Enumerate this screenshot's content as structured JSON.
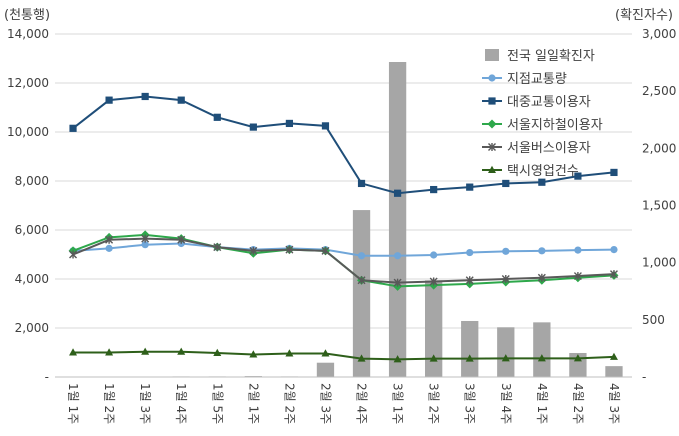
{
  "chart_data": {
    "type": "bar",
    "left_axis_label": "(천통행)",
    "right_axis_label": "(확진자수)",
    "left_ylim": [
      0,
      14000
    ],
    "left_ticks": [
      0,
      2000,
      4000,
      6000,
      8000,
      10000,
      12000,
      14000
    ],
    "left_tick_labels": [
      "-",
      "2,000",
      "4,000",
      "6,000",
      "8,000",
      "10,000",
      "12,000",
      "14,000"
    ],
    "right_ylim": [
      0,
      3000
    ],
    "right_ticks": [
      0,
      500,
      1000,
      1500,
      2000,
      2500,
      3000
    ],
    "right_tick_labels": [
      "-",
      "500",
      "1,000",
      "1,500",
      "2,000",
      "2,500",
      "3,000"
    ],
    "categories": [
      "1월 1주",
      "1월 2주",
      "1월 3주",
      "1월 4주",
      "1월 5주",
      "2월 1주",
      "2월 2주",
      "2월 3주",
      "2월 4주",
      "3월 1주",
      "3월 2주",
      "3월 3주",
      "3월 4주",
      "4월 1주",
      "4월 2주",
      "4월 3주"
    ],
    "grid": true,
    "legend_position": "top-right",
    "series": [
      {
        "name": "전국 일일확진자",
        "kind": "bar",
        "axis": "right",
        "color": "#a6a6a6",
        "values": [
          0,
          1,
          2,
          5,
          5,
          8,
          5,
          125,
          1460,
          2755,
          845,
          490,
          435,
          478,
          210,
          95
        ]
      },
      {
        "name": "지점교통량",
        "kind": "line",
        "axis": "left",
        "color": "#70a6d9",
        "marker": "circle",
        "values": [
          5150,
          5250,
          5400,
          5450,
          5300,
          5200,
          5250,
          5200,
          4950,
          4950,
          4980,
          5080,
          5130,
          5150,
          5180,
          5200
        ]
      },
      {
        "name": "대중교통이용자",
        "kind": "line",
        "axis": "left",
        "color": "#1f4e79",
        "marker": "square",
        "values": [
          10150,
          11300,
          11450,
          11300,
          10600,
          10200,
          10350,
          10250,
          7900,
          7500,
          7650,
          7750,
          7900,
          7950,
          8200,
          8350
        ]
      },
      {
        "name": "서울지하철이용자",
        "kind": "line",
        "axis": "left",
        "color": "#2ea84b",
        "marker": "diamond",
        "values": [
          5150,
          5700,
          5800,
          5650,
          5300,
          5050,
          5200,
          5150,
          3950,
          3700,
          3750,
          3800,
          3880,
          3950,
          4050,
          4150
        ]
      },
      {
        "name": "서울버스이용자",
        "kind": "line",
        "axis": "left",
        "color": "#595959",
        "marker": "x",
        "values": [
          5000,
          5600,
          5650,
          5600,
          5300,
          5150,
          5200,
          5150,
          3950,
          3850,
          3900,
          3950,
          4000,
          4050,
          4120,
          4200
        ]
      },
      {
        "name": "택시영업건수",
        "kind": "line",
        "axis": "left",
        "color": "#2e5f1a",
        "marker": "triangle",
        "values": [
          1000,
          1000,
          1030,
          1030,
          980,
          920,
          960,
          960,
          750,
          720,
          750,
          750,
          760,
          760,
          760,
          820
        ]
      }
    ]
  }
}
